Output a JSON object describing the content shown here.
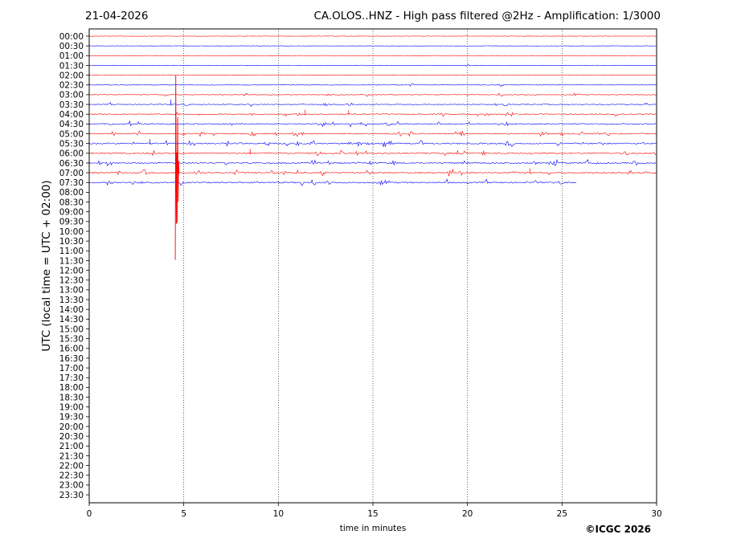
{
  "header": {
    "date": "21-04-2026",
    "title": "CA.OLOS..HNZ - High pass filtered @2Hz - Amplification: 1/3000"
  },
  "footer": {
    "copyright": "©ICGC 2026"
  },
  "chart_data": {
    "type": "line",
    "title": "CA.OLOS..HNZ - High pass filtered @2Hz - Amplification: 1/3000",
    "xlabel": "time in minutes",
    "ylabel": "UTC (local time = UTC + 02:00)",
    "xlim": [
      0,
      30
    ],
    "xticks": [
      0,
      5,
      10,
      15,
      20,
      25,
      30
    ],
    "grid": "vertical dotted lines at 5, 10, 15, 20, 25",
    "trace_colors": [
      "#ff0000",
      "#0000ff"
    ],
    "row_labels": [
      "00:00",
      "00:30",
      "01:00",
      "01:30",
      "02:00",
      "02:30",
      "03:00",
      "03:30",
      "04:00",
      "04:30",
      "05:00",
      "05:30",
      "06:00",
      "06:30",
      "07:00",
      "07:30",
      "08:00",
      "08:30",
      "09:00",
      "09:30",
      "10:00",
      "10:30",
      "11:00",
      "11:30",
      "12:00",
      "12:30",
      "13:00",
      "13:30",
      "14:00",
      "14:30",
      "15:00",
      "15:30",
      "16:00",
      "16:30",
      "17:00",
      "17:30",
      "18:00",
      "18:30",
      "19:00",
      "19:30",
      "20:00",
      "20:30",
      "21:00",
      "21:30",
      "22:00",
      "22:30",
      "23:00",
      "23:30"
    ],
    "traces": [
      {
        "row": "00:00",
        "color": "#ff0000",
        "end_minute": 30,
        "activity": 0.0
      },
      {
        "row": "00:30",
        "color": "#0000ff",
        "end_minute": 30,
        "activity": 0.0
      },
      {
        "row": "01:00",
        "color": "#ff0000",
        "end_minute": 30,
        "activity": 0.0
      },
      {
        "row": "01:30",
        "color": "#0000ff",
        "end_minute": 30,
        "activity": 0.05
      },
      {
        "row": "02:00",
        "color": "#ff0000",
        "end_minute": 30,
        "activity": 0.05
      },
      {
        "row": "02:30",
        "color": "#0000ff",
        "end_minute": 30,
        "activity": 0.15
      },
      {
        "row": "03:00",
        "color": "#ff0000",
        "end_minute": 30,
        "activity": 0.3
      },
      {
        "row": "03:30",
        "color": "#0000ff",
        "end_minute": 30,
        "activity": 0.35
      },
      {
        "row": "04:00",
        "color": "#ff0000",
        "end_minute": 30,
        "activity": 0.55
      },
      {
        "row": "04:30",
        "color": "#0000ff",
        "end_minute": 30,
        "activity": 0.7
      },
      {
        "row": "05:00",
        "color": "#ff0000",
        "end_minute": 30,
        "activity": 0.6
      },
      {
        "row": "05:30",
        "color": "#0000ff",
        "end_minute": 30,
        "activity": 0.8
      },
      {
        "row": "06:00",
        "color": "#ff0000",
        "end_minute": 30,
        "activity": 0.85
      },
      {
        "row": "06:30",
        "color": "#0000ff",
        "end_minute": 30,
        "activity": 0.85
      },
      {
        "row": "07:00",
        "color": "#ff0000",
        "end_minute": 30,
        "activity": 0.9
      },
      {
        "row": "07:30",
        "color": "#0000ff",
        "end_minute": 25.8,
        "activity": 0.85
      }
    ],
    "events": [
      {
        "row": "07:00",
        "minute": 4.55,
        "amplitude_rows": 10.5,
        "note": "large spike"
      },
      {
        "row": "07:00",
        "minute": 4.65,
        "amplitude_rows": 6.0
      },
      {
        "row": "03:30",
        "minute": 4.3,
        "amplitude_rows": 0.5
      },
      {
        "row": "04:00",
        "minute": 11.4,
        "amplitude_rows": 0.45
      },
      {
        "row": "04:00",
        "minute": 13.7,
        "amplitude_rows": 0.4
      },
      {
        "row": "05:30",
        "minute": 3.2,
        "amplitude_rows": 0.45
      },
      {
        "row": "06:00",
        "minute": 8.5,
        "amplitude_rows": 0.45
      },
      {
        "row": "07:00",
        "minute": 23.3,
        "amplitude_rows": 0.45
      }
    ]
  }
}
